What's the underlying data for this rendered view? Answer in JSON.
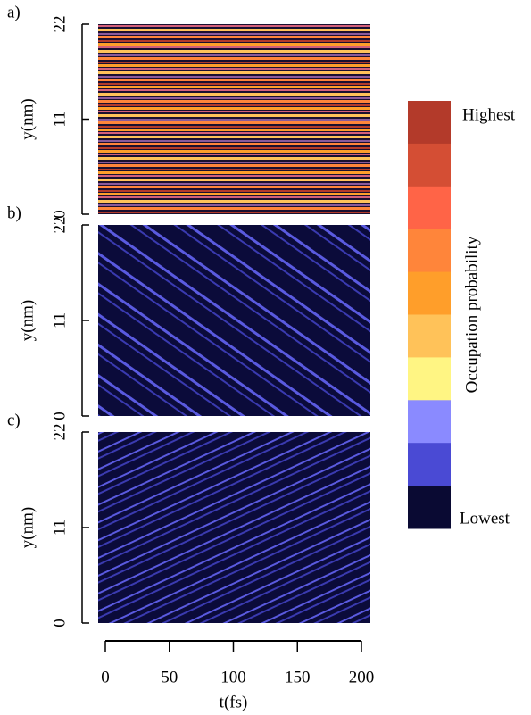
{
  "chart_data": [
    {
      "type": "heatmap",
      "panel_label": "a)",
      "ylabel": "y(nm)",
      "ylim": [
        0,
        22
      ],
      "yticks": [
        0,
        11,
        22
      ]
    },
    {
      "type": "heatmap",
      "panel_label": "b)",
      "ylabel": "y(nm)",
      "ylim": [
        0,
        22
      ],
      "yticks": [
        0,
        11,
        22
      ]
    },
    {
      "type": "heatmap",
      "panel_label": "c)",
      "ylabel": "y(nm)",
      "ylim": [
        0,
        22
      ],
      "yticks": [
        0,
        11,
        22
      ]
    },
    {
      "type": "xaxis",
      "xlabel": "t(fs)",
      "xlim": [
        0,
        200
      ],
      "xticks": [
        0,
        50,
        100,
        150,
        200
      ]
    },
    {
      "type": "colorbar",
      "label": "Occupation probability",
      "max_label": "Highest",
      "min_label": "Lowest",
      "colors": [
        "#b33a2a",
        "#d44e34",
        "#ff6447",
        "#ff853a",
        "#ff9e2a",
        "#ffc259",
        "#fff583",
        "#8a8aff",
        "#4a4ad4",
        "#0a0a33"
      ]
    }
  ]
}
